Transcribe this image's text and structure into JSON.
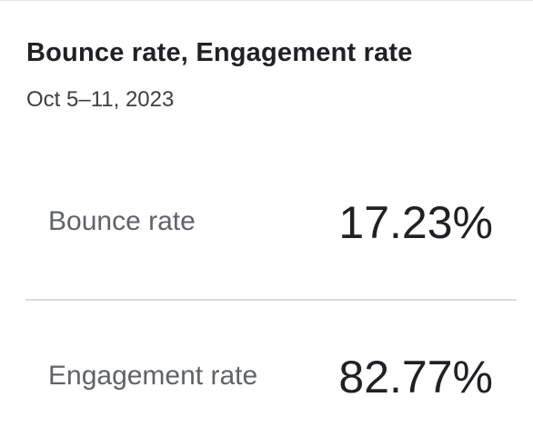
{
  "card": {
    "title": "Bounce rate, Engagement rate",
    "date_range": "Oct 5–11, 2023"
  },
  "metrics": [
    {
      "label": "Bounce rate",
      "value": "17.23%"
    },
    {
      "label": "Engagement rate",
      "value": "82.77%"
    }
  ],
  "colors": {
    "title": "#202124",
    "label": "#5f6368",
    "divider": "#dadce0"
  }
}
